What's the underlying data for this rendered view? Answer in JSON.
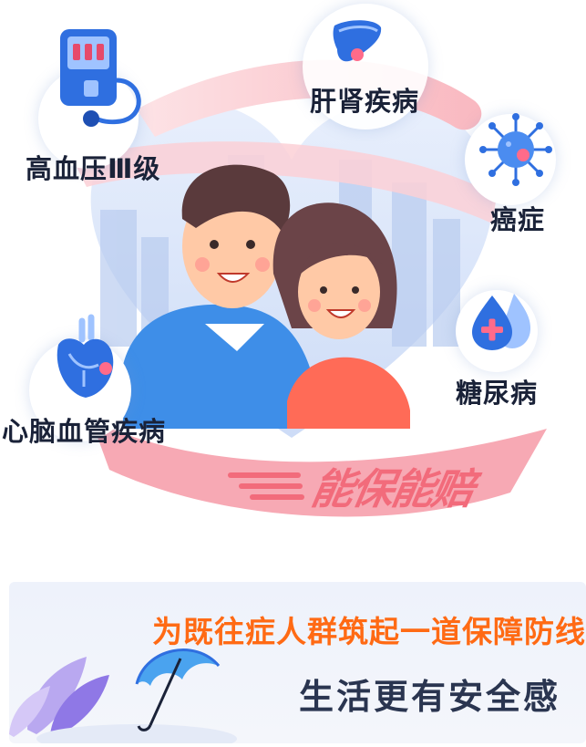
{
  "diseases": {
    "hypertension": "高血压Ⅲ级",
    "liver_kidney": "肝肾疾病",
    "cancer": "癌症",
    "diabetes": "糖尿病",
    "cardio": "心脑血管疾病"
  },
  "ribbon_slogan": "能保能赔",
  "headline": "为既往症人群筑起一道保障防线",
  "subline": "生活更有安全感",
  "colors": {
    "accent_orange": "#ff6a14",
    "ribbon_pink": "#f26b7b",
    "icon_blue": "#2f6fe0",
    "text_dark": "#1a2238"
  },
  "icons": [
    "blood-pressure-monitor-icon",
    "liver-icon",
    "virus-icon",
    "blood-drop-plus-icon",
    "heart-organ-icon",
    "umbrella-icon",
    "leaf-icon"
  ]
}
